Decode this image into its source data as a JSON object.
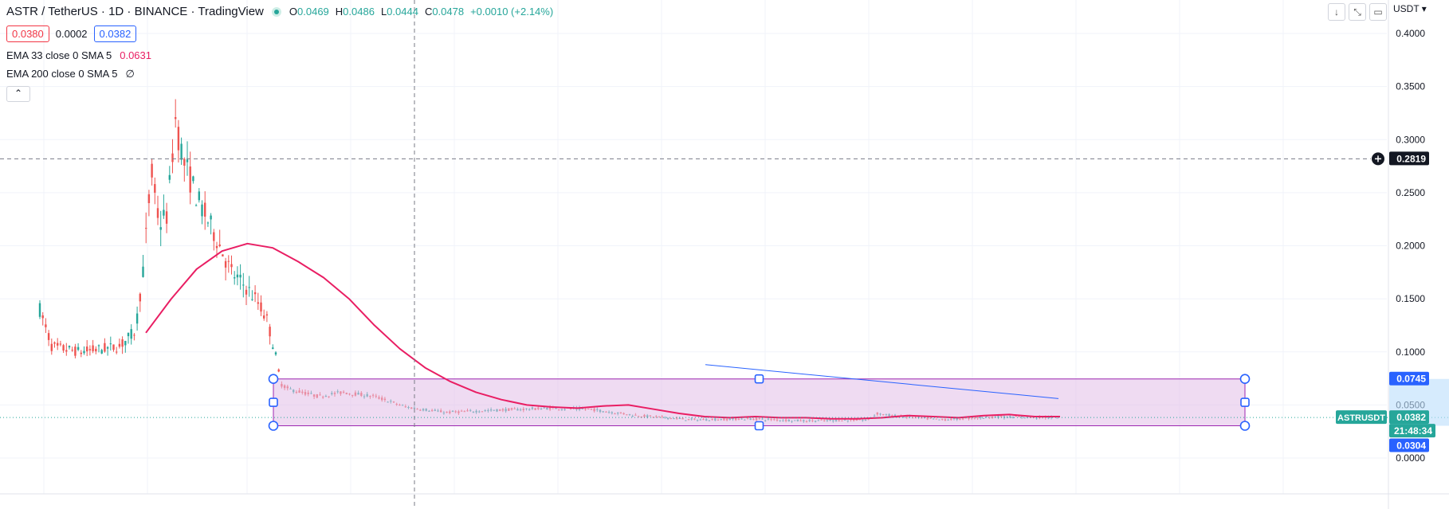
{
  "header": {
    "title": "ASTR / TetherUS · 1D · BINANCE · TradingView",
    "ohlc": {
      "o_label": "O",
      "o": "0.0469",
      "h_label": "H",
      "h": "0.0486",
      "l_label": "L",
      "l": "0.0444",
      "c_label": "C",
      "c": "0.0478",
      "change": "+0.0010 (+2.14%)"
    }
  },
  "quote": {
    "bid": "0.0380",
    "spread": "0.0002",
    "ask": "0.0382"
  },
  "indicators": [
    {
      "label": "EMA 33 close 0 SMA 5",
      "value": "0.0631"
    },
    {
      "label": "EMA 200 close 0 SMA 5",
      "value": "∅"
    }
  ],
  "collapse_icon": "chevron-up-icon",
  "toolbar": {
    "icons": [
      "arrow-down-icon",
      "fullscreen-toggle-icon",
      "expand-icon"
    ]
  },
  "currency": "USDT ▾",
  "y_axis": {
    "ticks": [
      "0.4000",
      "0.3500",
      "0.3000",
      "0.2500",
      "0.2000",
      "0.1500",
      "0.1000",
      "0.0500",
      "0.0000"
    ],
    "crosshair_price": "0.2819",
    "box_top_price": "0.0745",
    "last_price": "0.0382",
    "countdown": "21:48:34",
    "box_bottom_price": "0.0304",
    "symbol_tag": "ASTRUSDT"
  },
  "colors": {
    "up": "#26a69a",
    "down": "#ef5350",
    "ema": "#e91e63",
    "box_fill": "#e1bee7",
    "box_border": "#9c27b0",
    "handle": "#2962ff",
    "trendline": "#2962ff",
    "last_price_tag": "#26a69a",
    "range_tag": "#2962ff"
  },
  "chart_data": {
    "type": "candlestick",
    "ylim": [
      0.0,
      0.4
    ],
    "ema33": [
      0.118,
      0.15,
      0.178,
      0.195,
      0.202,
      0.198,
      0.185,
      0.17,
      0.15,
      0.125,
      0.103,
      0.085,
      0.072,
      0.062,
      0.055,
      0.05,
      0.048,
      0.047,
      0.049,
      0.05,
      0.046,
      0.042,
      0.039,
      0.038,
      0.039,
      0.038,
      0.038,
      0.037,
      0.037,
      0.038,
      0.04,
      0.039,
      0.038,
      0.04,
      0.041,
      0.039,
      0.039
    ],
    "rectangle": {
      "top": 0.0745,
      "bottom": 0.0304
    },
    "trendline": {
      "start": 0.088,
      "end": 0.056
    },
    "crosshair_price": 0.2819,
    "last_price": 0.0382
  }
}
